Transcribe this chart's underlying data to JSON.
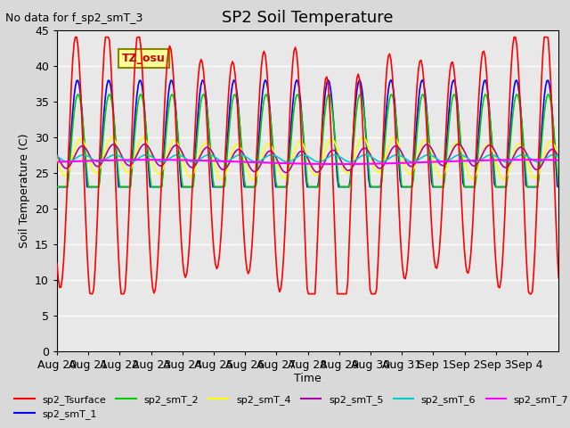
{
  "title": "SP2 Soil Temperature",
  "ylabel": "Soil Temperature (C)",
  "xlabel": "Time",
  "top_left_note": "No data for f_sp2_smT_3",
  "tz_label": "TZ_osu",
  "ylim": [
    0,
    45
  ],
  "yticks": [
    0,
    5,
    10,
    15,
    20,
    25,
    30,
    35,
    40,
    45
  ],
  "x_tick_labels": [
    "Aug 20",
    "Aug 21",
    "Aug 22",
    "Aug 23",
    "Aug 24",
    "Aug 25",
    "Aug 26",
    "Aug 27",
    "Aug 28",
    "Aug 29",
    "Aug 30",
    "Aug 31",
    "Sep 1",
    "Sep 2",
    "Sep 3",
    "Sep 4"
  ],
  "series": {
    "sp2_Tsurface": {
      "color": "#ff0000",
      "lw": 1.2
    },
    "sp2_smT_1": {
      "color": "#0000ff",
      "lw": 1.2
    },
    "sp2_smT_2": {
      "color": "#00cc00",
      "lw": 1.2
    },
    "sp2_smT_4": {
      "color": "#ffff00",
      "lw": 1.2
    },
    "sp2_smT_5": {
      "color": "#aa00aa",
      "lw": 1.2
    },
    "sp2_smT_6": {
      "color": "#00cccc",
      "lw": 1.2
    },
    "sp2_smT_7": {
      "color": "#ff00ff",
      "lw": 1.5
    }
  },
  "background_color": "#d9d9d9",
  "plot_bg_color": "#e8e8e8",
  "grid_color": "#ffffff"
}
